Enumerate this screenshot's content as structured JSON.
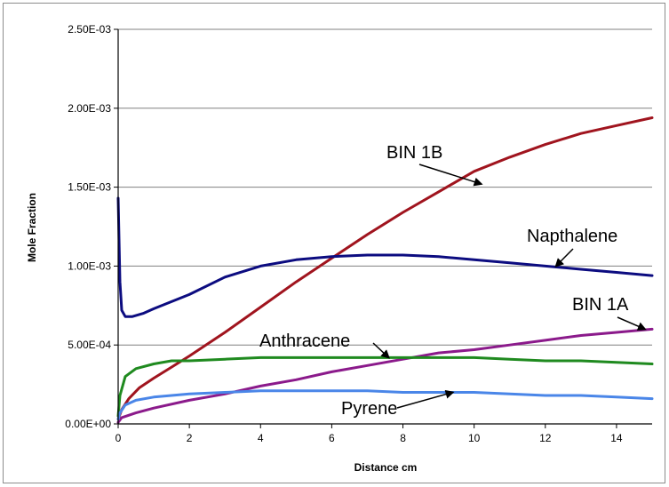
{
  "chart_data": {
    "type": "line",
    "title": "",
    "xlabel": "Distance cm",
    "ylabel": "Mole Fraction",
    "xlim": [
      0,
      15
    ],
    "ylim": [
      0,
      0.0025
    ],
    "x_ticks": [
      0,
      2,
      4,
      6,
      8,
      10,
      12,
      14
    ],
    "x_tick_labels": [
      "0",
      "2",
      "4",
      "6",
      "8",
      "10",
      "12",
      "14"
    ],
    "y_ticks": [
      0,
      0.0005,
      0.001,
      0.0015,
      0.002,
      0.0025
    ],
    "y_tick_labels": [
      "0.00E+00",
      "5.00E-04",
      "1.00E-03",
      "1.50E-03",
      "2.00E-03",
      "2.50E-03"
    ],
    "grid": "horizontal",
    "legend": "none",
    "series": [
      {
        "name": "BIN 1B",
        "color": "#a0141e",
        "x": [
          0,
          0.1,
          0.3,
          0.6,
          1,
          1.5,
          2,
          3,
          4,
          5,
          6,
          7,
          8,
          9,
          10,
          11,
          12,
          13,
          14,
          15
        ],
        "y": [
          3e-05,
          9e-05,
          0.00016,
          0.00023,
          0.00029,
          0.00036,
          0.00043,
          0.00058,
          0.00074,
          0.0009,
          0.00105,
          0.0012,
          0.00134,
          0.00147,
          0.0016,
          0.00169,
          0.00177,
          0.00184,
          0.00189,
          0.00194
        ]
      },
      {
        "name": "Napthalene",
        "color": "#0c0c80",
        "x": [
          0,
          0.05,
          0.1,
          0.2,
          0.4,
          0.7,
          1,
          2,
          3,
          4,
          5,
          6,
          7,
          8,
          9,
          10,
          11,
          12,
          13,
          14,
          15
        ],
        "y": [
          0.00143,
          0.0009,
          0.00072,
          0.00068,
          0.00068,
          0.0007,
          0.00073,
          0.00082,
          0.00093,
          0.001,
          0.00104,
          0.00106,
          0.00107,
          0.00107,
          0.00106,
          0.00104,
          0.00102,
          0.001,
          0.00098,
          0.00096,
          0.00094
        ]
      },
      {
        "name": "BIN 1A",
        "color": "#8b1a8b",
        "x": [
          0,
          0.1,
          0.5,
          1,
          2,
          3,
          4,
          5,
          6,
          7,
          8,
          9,
          10,
          11,
          12,
          13,
          14,
          15
        ],
        "y": [
          1e-05,
          4e-05,
          7e-05,
          0.0001,
          0.00015,
          0.00019,
          0.00024,
          0.00028,
          0.00033,
          0.00037,
          0.00041,
          0.00045,
          0.00047,
          0.0005,
          0.00053,
          0.00056,
          0.00058,
          0.0006
        ]
      },
      {
        "name": "Anthracene",
        "color": "#1f8a1f",
        "x": [
          0,
          0.05,
          0.2,
          0.5,
          1,
          1.5,
          2,
          3,
          4,
          5,
          6,
          7,
          8,
          9,
          10,
          11,
          12,
          13,
          14,
          15
        ],
        "y": [
          5e-05,
          0.00018,
          0.0003,
          0.00035,
          0.00038,
          0.0004,
          0.0004,
          0.00041,
          0.00042,
          0.00042,
          0.00042,
          0.00042,
          0.00042,
          0.00042,
          0.00042,
          0.00041,
          0.0004,
          0.0004,
          0.00039,
          0.00038
        ]
      },
      {
        "name": "Pyrene",
        "color": "#4a86e8",
        "x": [
          0,
          0.05,
          0.2,
          0.5,
          1,
          2,
          3,
          4,
          5,
          6,
          7,
          8,
          9,
          10,
          11,
          12,
          13,
          14,
          15
        ],
        "y": [
          3e-05,
          7e-05,
          0.00012,
          0.00015,
          0.00017,
          0.00019,
          0.0002,
          0.00021,
          0.00021,
          0.00021,
          0.00021,
          0.0002,
          0.0002,
          0.0002,
          0.00019,
          0.00018,
          0.00018,
          0.00017,
          0.00016
        ]
      }
    ],
    "annotations": [
      {
        "text": "BIN 1B",
        "series": "BIN 1B",
        "arrow_x": 10.2,
        "arrow_y": 0.00152
      },
      {
        "text": "Napthalene",
        "series": "Napthalene",
        "arrow_x": 12.3,
        "arrow_y": 0.001
      },
      {
        "text": "BIN 1A",
        "series": "BIN 1A",
        "arrow_x": 14.8,
        "arrow_y": 0.0006
      },
      {
        "text": "Anthracene",
        "series": "Anthracene",
        "arrow_x": 7.6,
        "arrow_y": 0.00042
      },
      {
        "text": "Pyrene",
        "series": "Pyrene",
        "arrow_x": 9.4,
        "arrow_y": 0.0002
      }
    ]
  }
}
